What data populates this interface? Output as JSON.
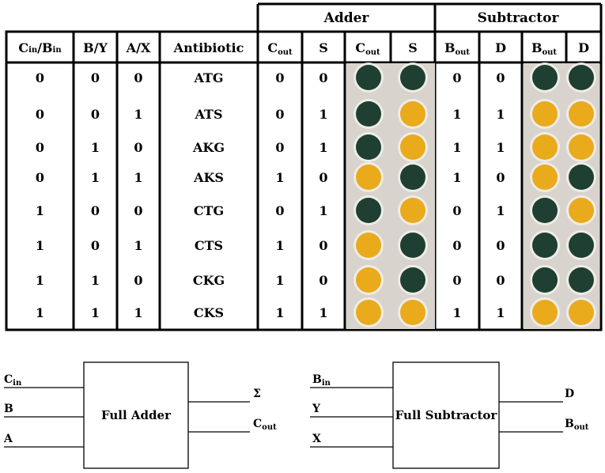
{
  "table": {
    "group_headers": {
      "adder": "Adder",
      "subtractor": "Subtractor"
    },
    "columns": [
      "C",
      "B/Y",
      "A/X",
      "Antibiotic",
      "C",
      "S",
      "C",
      "S",
      "B",
      "D",
      "B",
      "D"
    ],
    "column_subscripts": [
      "in/B",
      "",
      "",
      "",
      "out",
      "",
      "out",
      "",
      "out",
      "",
      "out",
      ""
    ],
    "column_tail": [
      "in",
      "",
      "",
      "",
      "",
      "",
      "",
      "",
      "",
      "",
      "",
      ""
    ],
    "rows": [
      {
        "cin_bin": "0",
        "b_y": "0",
        "a_x": "0",
        "antibiotic": "ATG",
        "cout": "0",
        "s": "0",
        "bout": "0",
        "d": "0"
      },
      {
        "cin_bin": "0",
        "b_y": "0",
        "a_x": "1",
        "antibiotic": "ATS",
        "cout": "0",
        "s": "1",
        "bout": "1",
        "d": "1"
      },
      {
        "cin_bin": "0",
        "b_y": "1",
        "a_x": "0",
        "antibiotic": "AKG",
        "cout": "0",
        "s": "1",
        "bout": "1",
        "d": "1"
      },
      {
        "cin_bin": "0",
        "b_y": "1",
        "a_x": "1",
        "antibiotic": "AKS",
        "cout": "1",
        "s": "0",
        "bout": "1",
        "d": "0"
      },
      {
        "cin_bin": "1",
        "b_y": "0",
        "a_x": "0",
        "antibiotic": "CTG",
        "cout": "0",
        "s": "1",
        "bout": "0",
        "d": "1"
      },
      {
        "cin_bin": "1",
        "b_y": "0",
        "a_x": "1",
        "antibiotic": "CTS",
        "cout": "1",
        "s": "0",
        "bout": "0",
        "d": "0"
      },
      {
        "cin_bin": "1",
        "b_y": "1",
        "a_x": "0",
        "antibiotic": "CKG",
        "cout": "1",
        "s": "0",
        "bout": "0",
        "d": "0"
      },
      {
        "cin_bin": "1",
        "b_y": "1",
        "a_x": "1",
        "antibiotic": "CKS",
        "cout": "1",
        "s": "1",
        "bout": "1",
        "d": "1"
      }
    ],
    "well_colors": {
      "green": "#1e3f32",
      "yellow": "#e9aa1c",
      "plate": "#d8d3cc"
    }
  },
  "full_adder": {
    "title": "Full Adder",
    "inputs": [
      {
        "main": "C",
        "sub": "in"
      },
      {
        "main": "B",
        "sub": ""
      },
      {
        "main": "A",
        "sub": ""
      }
    ],
    "outputs": [
      {
        "main": "Σ",
        "sub": ""
      },
      {
        "main": "C",
        "sub": "out"
      }
    ]
  },
  "full_subtractor": {
    "title": "Full Subtractor",
    "inputs": [
      {
        "main": "B",
        "sub": "in"
      },
      {
        "main": "Y",
        "sub": ""
      },
      {
        "main": "X",
        "sub": ""
      }
    ],
    "outputs": [
      {
        "main": "D",
        "sub": ""
      },
      {
        "main": "B",
        "sub": "out"
      }
    ]
  }
}
